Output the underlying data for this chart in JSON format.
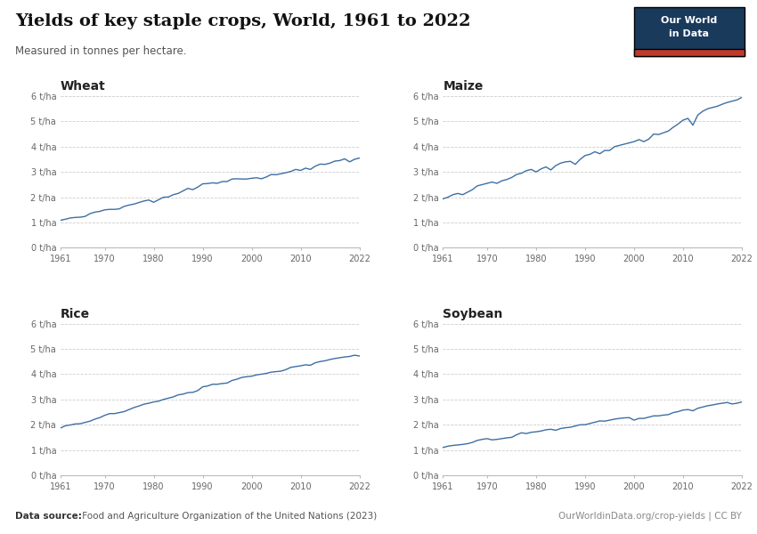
{
  "title": "Yields of key staple crops, World, 1961 to 2022",
  "subtitle": "Measured in tonnes per hectare.",
  "datasource_bold": "Data source:",
  "datasource_rest": " Food and Agriculture Organization of the United Nations (2023)",
  "url": "OurWorldinData.org/crop-yields | CC BY",
  "line_color": "#3d6fa3",
  "background_color": "#ffffff",
  "grid_color": "#cccccc",
  "years": [
    1961,
    1962,
    1963,
    1964,
    1965,
    1966,
    1967,
    1968,
    1969,
    1970,
    1971,
    1972,
    1973,
    1974,
    1975,
    1976,
    1977,
    1978,
    1979,
    1980,
    1981,
    1982,
    1983,
    1984,
    1985,
    1986,
    1987,
    1988,
    1989,
    1990,
    1991,
    1992,
    1993,
    1994,
    1995,
    1996,
    1997,
    1998,
    1999,
    2000,
    2001,
    2002,
    2003,
    2004,
    2005,
    2006,
    2007,
    2008,
    2009,
    2010,
    2011,
    2012,
    2013,
    2014,
    2015,
    2016,
    2017,
    2018,
    2019,
    2020,
    2021,
    2022
  ],
  "wheat": [
    1.09,
    1.13,
    1.18,
    1.2,
    1.21,
    1.24,
    1.35,
    1.41,
    1.44,
    1.5,
    1.52,
    1.52,
    1.54,
    1.64,
    1.69,
    1.73,
    1.79,
    1.85,
    1.89,
    1.8,
    1.9,
    2.0,
    2.01,
    2.1,
    2.15,
    2.25,
    2.35,
    2.3,
    2.4,
    2.53,
    2.54,
    2.57,
    2.55,
    2.62,
    2.62,
    2.72,
    2.73,
    2.72,
    2.72,
    2.75,
    2.77,
    2.73,
    2.8,
    2.9,
    2.89,
    2.93,
    2.97,
    3.02,
    3.1,
    3.06,
    3.15,
    3.1,
    3.23,
    3.31,
    3.3,
    3.35,
    3.43,
    3.45,
    3.52,
    3.4,
    3.5,
    3.55
  ],
  "maize": [
    1.94,
    2.0,
    2.1,
    2.15,
    2.1,
    2.2,
    2.3,
    2.45,
    2.5,
    2.55,
    2.6,
    2.55,
    2.65,
    2.7,
    2.78,
    2.9,
    2.95,
    3.05,
    3.1,
    3.0,
    3.12,
    3.2,
    3.08,
    3.25,
    3.35,
    3.4,
    3.42,
    3.3,
    3.5,
    3.65,
    3.7,
    3.8,
    3.72,
    3.85,
    3.85,
    4.0,
    4.05,
    4.1,
    4.15,
    4.2,
    4.28,
    4.2,
    4.3,
    4.5,
    4.48,
    4.55,
    4.62,
    4.77,
    4.9,
    5.05,
    5.12,
    4.85,
    5.25,
    5.4,
    5.5,
    5.55,
    5.6,
    5.68,
    5.75,
    5.8,
    5.85,
    5.95
  ],
  "rice": [
    1.87,
    1.96,
    1.99,
    2.03,
    2.04,
    2.09,
    2.14,
    2.22,
    2.28,
    2.37,
    2.44,
    2.44,
    2.48,
    2.52,
    2.6,
    2.68,
    2.74,
    2.81,
    2.85,
    2.9,
    2.93,
    3.0,
    3.05,
    3.1,
    3.18,
    3.21,
    3.27,
    3.28,
    3.35,
    3.5,
    3.53,
    3.6,
    3.6,
    3.63,
    3.65,
    3.75,
    3.8,
    3.87,
    3.9,
    3.92,
    3.97,
    4.0,
    4.03,
    4.08,
    4.1,
    4.12,
    4.18,
    4.27,
    4.3,
    4.33,
    4.37,
    4.35,
    4.45,
    4.5,
    4.53,
    4.58,
    4.62,
    4.65,
    4.68,
    4.7,
    4.75,
    4.72
  ],
  "soybean": [
    1.1,
    1.15,
    1.18,
    1.2,
    1.22,
    1.25,
    1.3,
    1.38,
    1.42,
    1.45,
    1.4,
    1.42,
    1.45,
    1.48,
    1.5,
    1.6,
    1.68,
    1.65,
    1.7,
    1.72,
    1.75,
    1.8,
    1.82,
    1.78,
    1.85,
    1.88,
    1.9,
    1.95,
    2.0,
    2.0,
    2.05,
    2.1,
    2.15,
    2.14,
    2.18,
    2.22,
    2.25,
    2.27,
    2.28,
    2.18,
    2.25,
    2.25,
    2.3,
    2.35,
    2.35,
    2.38,
    2.4,
    2.48,
    2.52,
    2.58,
    2.6,
    2.55,
    2.65,
    2.7,
    2.75,
    2.78,
    2.82,
    2.85,
    2.88,
    2.82,
    2.85,
    2.9
  ],
  "crops": [
    "Wheat",
    "Maize",
    "Rice",
    "Soybean"
  ],
  "ylim": [
    0,
    6
  ],
  "yticks": [
    0,
    1,
    2,
    3,
    4,
    5,
    6
  ],
  "xticks": [
    1961,
    1970,
    1980,
    1990,
    2000,
    2010,
    2022
  ],
  "logo_bg": "#1a3a5c",
  "logo_text1": "Our World",
  "logo_text2": "in Data",
  "logo_accent": "#c0392b"
}
